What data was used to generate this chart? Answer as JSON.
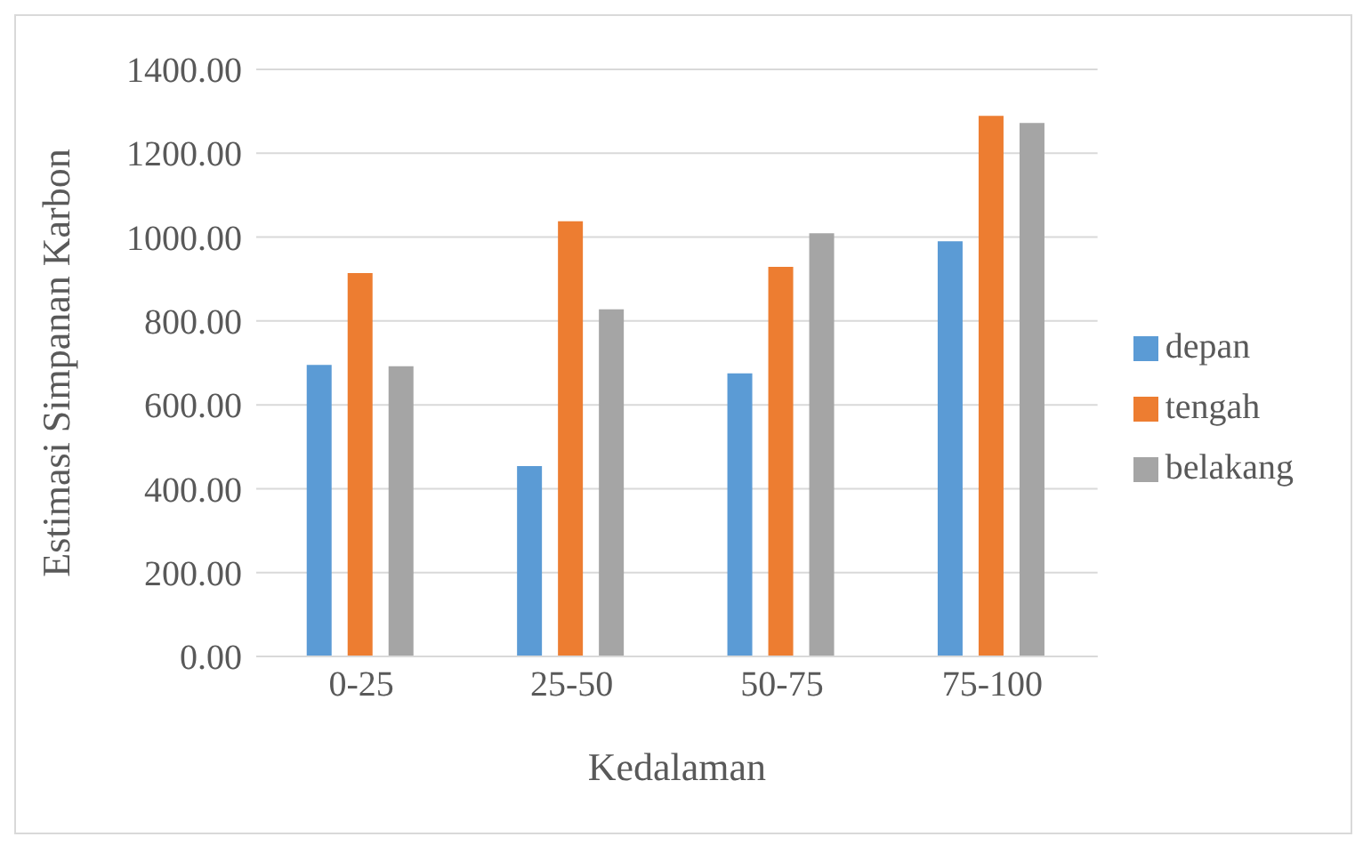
{
  "chart_data": {
    "type": "bar",
    "xlabel": "Kedalaman",
    "ylabel": "Estimasi Simpanan Karbon",
    "categories": [
      "0-25",
      "25-50",
      "50-75",
      "75-100"
    ],
    "series": [
      {
        "name": "depan",
        "color": "#5b9bd5",
        "values": [
          695,
          454,
          675,
          990
        ]
      },
      {
        "name": "tengah",
        "color": "#ed7d31",
        "values": [
          914,
          1038,
          929,
          1289
        ]
      },
      {
        "name": "belakang",
        "color": "#a5a5a5",
        "values": [
          692,
          828,
          1009,
          1272
        ]
      }
    ],
    "ylim": [
      0,
      1400
    ],
    "yticks": [
      {
        "value": 0,
        "label": "0.00"
      },
      {
        "value": 200,
        "label": "200.00"
      },
      {
        "value": 400,
        "label": "400.00"
      },
      {
        "value": 600,
        "label": "600.00"
      },
      {
        "value": 800,
        "label": "800.00"
      },
      {
        "value": 1000,
        "label": "1000.00"
      },
      {
        "value": 1200,
        "label": "1200.00"
      },
      {
        "value": 1400,
        "label": "1400.00"
      }
    ],
    "grid": "y",
    "legend": "right"
  }
}
